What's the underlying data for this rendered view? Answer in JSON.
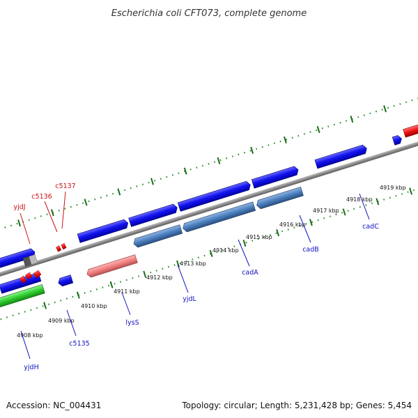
{
  "title": "Escherichia coli CFT073, complete genome",
  "footer": {
    "accession": "Accession: NC_004431",
    "summary": "Topology: circular; Length: 5,231,428 bp; Genes: 5,454"
  },
  "colors": {
    "backbone": "#8a8a8a",
    "forward_cds": "#1010e8",
    "reverse_cds": "#4a7fbf",
    "trna": "#f08080",
    "rrna": "#2ecc2e",
    "misc_red": "#ee1111",
    "misc_gray": "#666666",
    "tick_major": "#1a6e1a",
    "tick_minor": "#2e8b2e",
    "label_blue": "#1010c0",
    "label_red": "#cc1010"
  },
  "ruler": {
    "ticks": [
      {
        "label": "4908 kbp"
      },
      {
        "label": "4909 kbp"
      },
      {
        "label": "4910 kbp"
      },
      {
        "label": "4911 kbp"
      },
      {
        "label": "4912 kbp"
      },
      {
        "label": "4913 kbp"
      },
      {
        "label": "4914 kbp"
      },
      {
        "label": "4915 kbp"
      },
      {
        "label": "4916 kbp"
      },
      {
        "label": "4917 kbp"
      },
      {
        "label": "4918 kbp"
      },
      {
        "label": "4919 kbp"
      }
    ]
  },
  "genes": [
    {
      "name": "yjdJ",
      "color": "red"
    },
    {
      "name": "c5136",
      "color": "red"
    },
    {
      "name": "c5137",
      "color": "red"
    },
    {
      "name": "yjdH",
      "color": "blue"
    },
    {
      "name": "c5135",
      "color": "blue"
    },
    {
      "name": "lysS",
      "color": "blue"
    },
    {
      "name": "yjdL",
      "color": "blue"
    },
    {
      "name": "cadA",
      "color": "blue"
    },
    {
      "name": "cadB",
      "color": "blue"
    },
    {
      "name": "cadC",
      "color": "blue"
    }
  ]
}
